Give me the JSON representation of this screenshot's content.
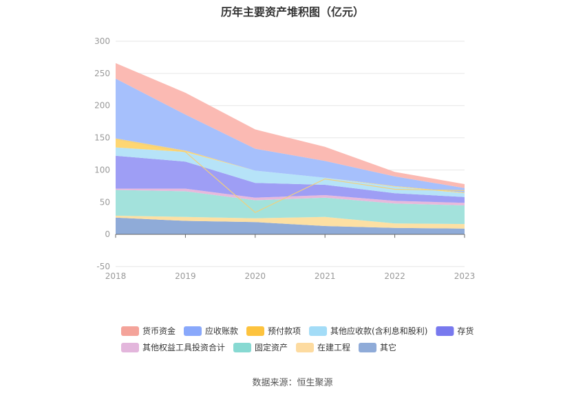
{
  "title": "历年主要资产堆积图（亿元）",
  "source": "数据来源：恒生聚源",
  "chart_data": {
    "type": "area",
    "stacked": true,
    "x": [
      "2018",
      "2019",
      "2020",
      "2021",
      "2022",
      "2023"
    ],
    "ylim": [
      -50,
      300
    ],
    "yticks": [
      "300",
      "250",
      "200",
      "150",
      "100",
      "50",
      "0",
      "-50"
    ],
    "grid": true,
    "legend_position": "bottom",
    "series": [
      {
        "name": "其它",
        "color": "#8fabd8",
        "values": [
          26,
          21,
          19,
          13,
          10,
          9
        ]
      },
      {
        "name": "在建工程",
        "color": "#fde0a3",
        "values": [
          3,
          6,
          6,
          14,
          7,
          7
        ]
      },
      {
        "name": "固定资产",
        "color": "#a3e2dc",
        "values": [
          40,
          40,
          28,
          30,
          31,
          29
        ]
      },
      {
        "name": "其他权益工具投资合计",
        "color": "#e7b9dc",
        "values": [
          2,
          4,
          4,
          4,
          4,
          4
        ]
      },
      {
        "name": "存货",
        "color": "#9e9ef5",
        "values": [
          51,
          42,
          23,
          16,
          12,
          9
        ]
      },
      {
        "name": "其他应收款(含利息和股利)",
        "color": "#b6e3f8",
        "values": [
          13,
          15,
          19,
          11,
          10,
          6
        ]
      },
      {
        "name": "预付款项",
        "color": "#fed672",
        "values": [
          14,
          2,
          0,
          0,
          1,
          1
        ]
      },
      {
        "name": "应收账款",
        "color": "#a6c0fc",
        "values": [
          93,
          56,
          34,
          26,
          15,
          7
        ]
      },
      {
        "name": "货币资金",
        "color": "#fbbab3",
        "values": [
          24,
          34,
          30,
          22,
          7,
          6
        ]
      }
    ],
    "legend_order": [
      "货币资金",
      "应收账款",
      "预付款项",
      "其他应收款(含利息和股利)",
      "存货",
      "其他权益工具投资合计",
      "固定资产",
      "在建工程",
      "其它"
    ],
    "legend_colors": {
      "货币资金": "#f4a39a",
      "应收账款": "#89a8fb",
      "预付款项": "#fdc33e",
      "其他应收款(含利息和股利)": "#a3dcf7",
      "存货": "#7879ee",
      "其他权益工具投资合计": "#e3b6dc",
      "固定资产": "#87d9d2",
      "在建工程": "#fddba0",
      "其它": "#8fabd8"
    },
    "prepaid_line_values": [
      148,
      128,
      34,
      86,
      70,
      68
    ]
  }
}
